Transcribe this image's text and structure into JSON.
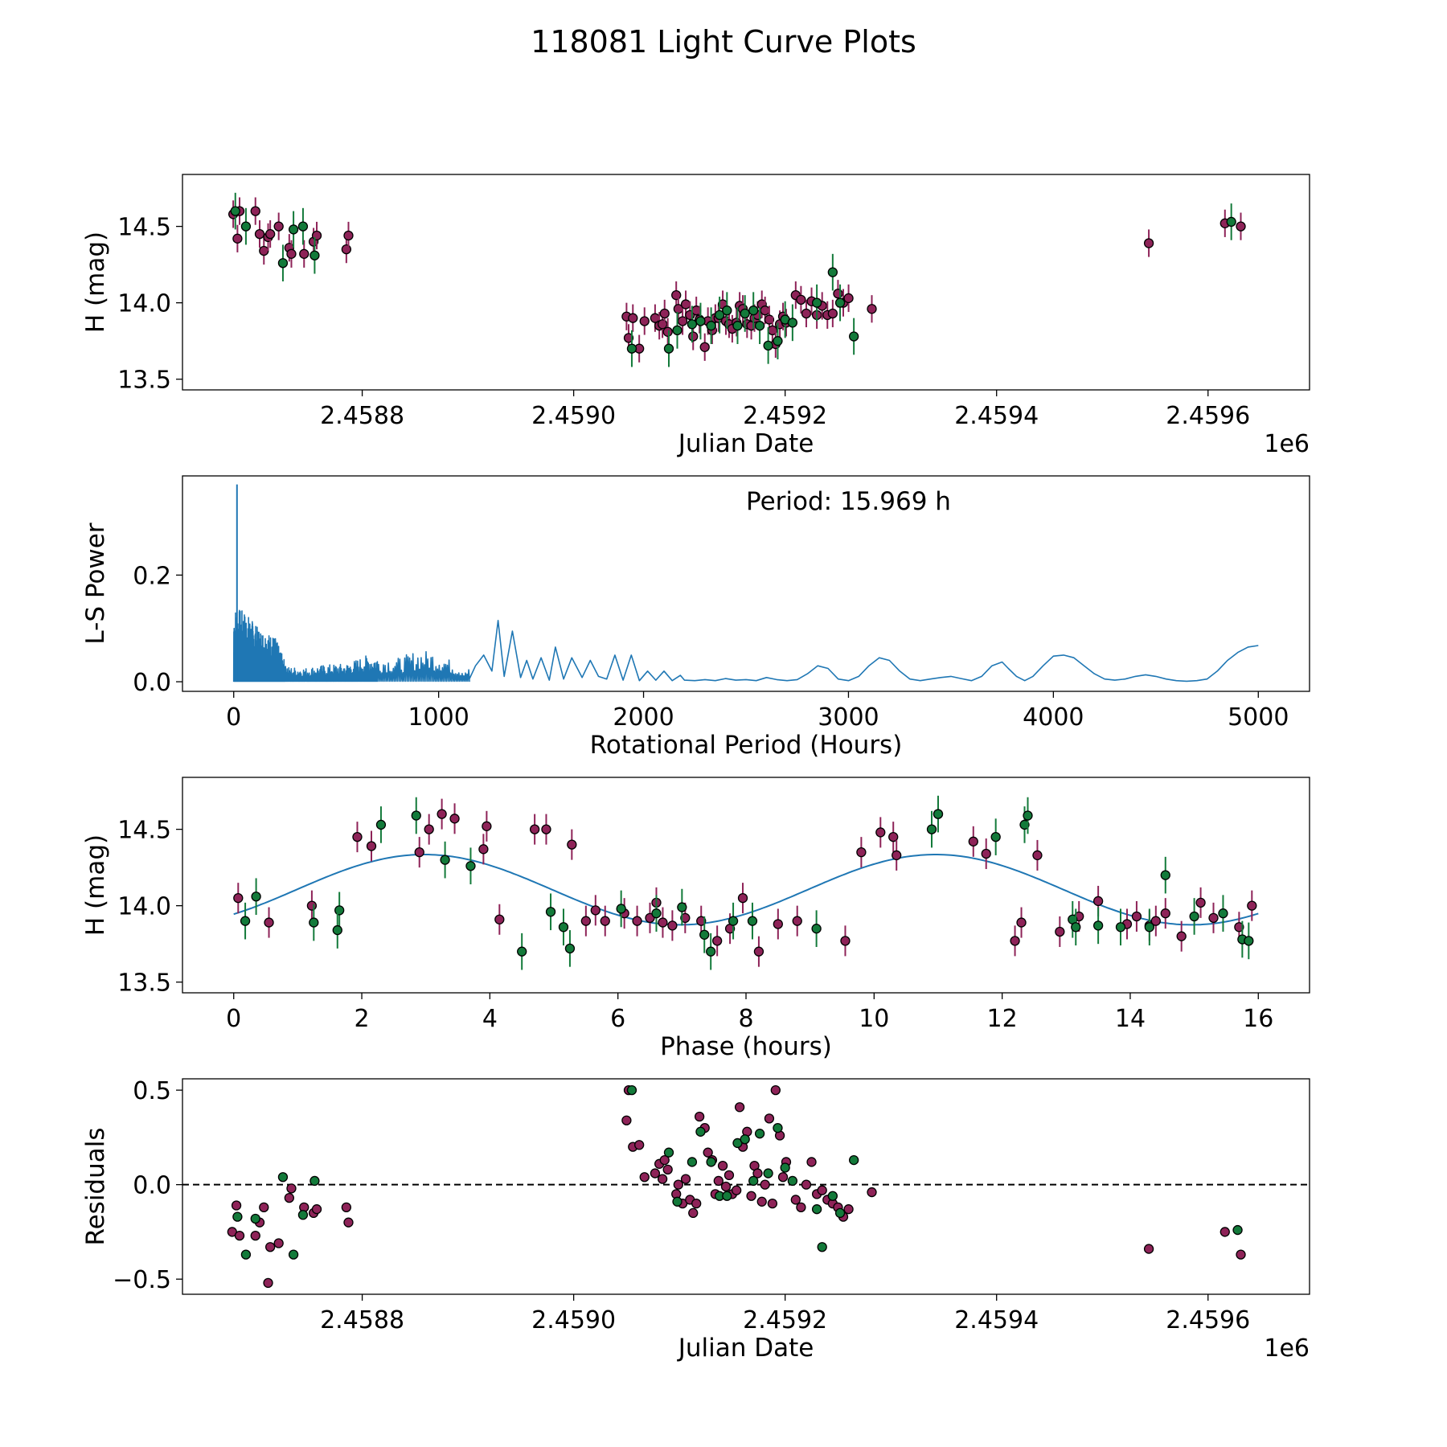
{
  "title": "118081 Light Curve Plots",
  "colors": {
    "purple": "#8e2358",
    "green": "#137a3a",
    "curve": "#1f77b4",
    "edge": "#000000"
  },
  "chart_data": [
    {
      "id": "lc",
      "type": "scatter",
      "xlabel": "Julian Date",
      "ylabel": "H (mag)",
      "offset_text": "1e6",
      "xlim": [
        2458630,
        2459696
      ],
      "ylim": [
        13.43,
        14.84
      ],
      "xticks": [
        2458800,
        2459000,
        2459200,
        2459400,
        2459600
      ],
      "xtick_labels": [
        "2.4588",
        "2.4590",
        "2.4592",
        "2.4594",
        "2.4596"
      ],
      "yticks": [
        13.5,
        14.0,
        14.5
      ],
      "ytick_labels": [
        "13.5",
        "14.0",
        "14.5"
      ],
      "series": [
        {
          "color": "purple",
          "err": 0.09,
          "x": [
            2458678,
            2458682,
            2458684,
            2458699,
            2458703,
            2458707,
            2458711,
            2458713,
            2458721,
            2458731,
            2458733,
            2458745,
            2458754,
            2458757,
            2458785,
            2458787,
            2459050,
            2459052,
            2459056,
            2459062,
            2459067,
            2459077,
            2459081,
            2459084,
            2459086,
            2459089,
            2459097,
            2459099,
            2459103,
            2459106,
            2459110,
            2459113,
            2459116,
            2459119,
            2459124,
            2459127,
            2459131,
            2459134,
            2459137,
            2459141,
            2459144,
            2459147,
            2459150,
            2459154,
            2459157,
            2459160,
            2459164,
            2459168,
            2459171,
            2459174,
            2459178,
            2459181,
            2459185,
            2459188,
            2459191,
            2459195,
            2459198,
            2459201,
            2459210,
            2459215,
            2459220,
            2459225,
            2459230,
            2459235,
            2459240,
            2459245,
            2459250,
            2459255,
            2459260,
            2459282,
            2459544,
            2459616,
            2459631
          ],
          "y": [
            14.58,
            14.42,
            14.6,
            14.6,
            14.45,
            14.34,
            14.43,
            14.45,
            14.5,
            14.36,
            14.32,
            14.32,
            14.4,
            14.44,
            14.35,
            14.44,
            13.91,
            13.77,
            13.9,
            13.7,
            13.88,
            13.9,
            13.85,
            13.86,
            13.93,
            13.81,
            14.05,
            13.96,
            13.88,
            13.99,
            13.92,
            13.78,
            13.95,
            13.89,
            13.71,
            13.88,
            13.82,
            13.9,
            13.9,
            13.99,
            13.88,
            13.86,
            13.83,
            13.87,
            13.98,
            13.96,
            13.86,
            13.85,
            13.9,
            13.92,
            13.99,
            13.95,
            13.89,
            13.82,
            13.73,
            13.86,
            13.91,
            13.87,
            14.05,
            14.02,
            13.93,
            14.01,
            13.92,
            13.98,
            13.92,
            13.93,
            14.06,
            14.0,
            14.03,
            13.96,
            14.39,
            14.52,
            14.5
          ]
        },
        {
          "color": "green",
          "err": 0.12,
          "x": [
            2458680,
            2458690,
            2458725,
            2458735,
            2458744,
            2458755,
            2459055,
            2459090,
            2459098,
            2459112,
            2459120,
            2459130,
            2459138,
            2459145,
            2459155,
            2459162,
            2459170,
            2459176,
            2459184,
            2459193,
            2459200,
            2459207,
            2459230,
            2459245,
            2459252,
            2459265,
            2459622
          ],
          "y": [
            14.6,
            14.5,
            14.26,
            14.48,
            14.5,
            14.31,
            13.7,
            13.7,
            13.82,
            13.86,
            13.88,
            13.85,
            13.92,
            13.95,
            13.85,
            13.93,
            13.95,
            13.85,
            13.72,
            13.75,
            13.89,
            13.87,
            14.0,
            14.2,
            14.0,
            13.78,
            14.53
          ]
        }
      ]
    },
    {
      "id": "ls",
      "type": "line",
      "xlabel": "Rotational Period (Hours)",
      "ylabel": "L-S Power",
      "annotation": "Period: 15.969 h",
      "xlim": [
        -250,
        5250
      ],
      "ylim": [
        -0.018,
        0.386
      ],
      "xticks": [
        0,
        1000,
        2000,
        3000,
        4000,
        5000
      ],
      "xtick_labels": [
        "0",
        "1000",
        "2000",
        "3000",
        "4000",
        "5000"
      ],
      "yticks": [
        0.0,
        0.2
      ],
      "ytick_labels": [
        "0.0",
        "0.2"
      ],
      "peak": {
        "x": 15.969,
        "y": 0.37
      },
      "envelope": {
        "x": [
          10,
          60,
          120,
          200,
          260,
          350,
          450,
          550,
          650,
          800,
          900,
          1000,
          1100,
          1150
        ],
        "y": [
          0.14,
          0.13,
          0.1,
          0.085,
          0.028,
          0.026,
          0.032,
          0.034,
          0.05,
          0.045,
          0.06,
          0.055,
          0.028,
          0.025
        ]
      },
      "smooth": {
        "x": [
          1150,
          1180,
          1220,
          1260,
          1290,
          1320,
          1360,
          1400,
          1430,
          1460,
          1500,
          1540,
          1570,
          1610,
          1650,
          1700,
          1740,
          1780,
          1820,
          1860,
          1900,
          1940,
          1980,
          2020,
          2060,
          2100,
          2140,
          2180,
          2200,
          2250,
          2300,
          2350,
          2400,
          2450,
          2500,
          2550,
          2600,
          2650,
          2700,
          2750,
          2800,
          2850,
          2900,
          2950,
          3000,
          3050,
          3100,
          3150,
          3200,
          3250,
          3300,
          3350,
          3400,
          3450,
          3500,
          3550,
          3600,
          3650,
          3700,
          3750,
          3780,
          3820,
          3860,
          3900,
          3950,
          4000,
          4050,
          4100,
          4150,
          4200,
          4250,
          4300,
          4350,
          4400,
          4450,
          4500,
          4550,
          4600,
          4650,
          4700,
          4750,
          4800,
          4850,
          4900,
          4950,
          5000
        ],
        "y": [
          0.005,
          0.03,
          0.05,
          0.02,
          0.115,
          0.01,
          0.095,
          0.008,
          0.04,
          0.005,
          0.045,
          0.003,
          0.065,
          0.005,
          0.045,
          0.008,
          0.04,
          0.01,
          0.005,
          0.05,
          0.003,
          0.05,
          0.002,
          0.02,
          0.003,
          0.02,
          0.002,
          0.012,
          0.003,
          0.002,
          0.004,
          0.002,
          0.006,
          0.003,
          0.004,
          0.002,
          0.008,
          0.004,
          0.002,
          0.004,
          0.015,
          0.03,
          0.025,
          0.005,
          0.002,
          0.01,
          0.03,
          0.045,
          0.04,
          0.02,
          0.005,
          0.002,
          0.005,
          0.008,
          0.01,
          0.006,
          0.002,
          0.01,
          0.03,
          0.037,
          0.025,
          0.01,
          0.002,
          0.01,
          0.03,
          0.048,
          0.05,
          0.045,
          0.03,
          0.015,
          0.005,
          0.003,
          0.005,
          0.01,
          0.013,
          0.01,
          0.005,
          0.002,
          0.001,
          0.002,
          0.005,
          0.02,
          0.04,
          0.055,
          0.065,
          0.068
        ]
      }
    },
    {
      "id": "phase",
      "type": "scatter",
      "xlabel": "Phase (hours)",
      "ylabel": "H (mag)",
      "xlim": [
        -0.8,
        16.8
      ],
      "ylim": [
        13.43,
        14.84
      ],
      "xticks": [
        0,
        2,
        4,
        6,
        8,
        10,
        12,
        14,
        16
      ],
      "xtick_labels": [
        "0",
        "2",
        "4",
        "6",
        "8",
        "10",
        "12",
        "14",
        "16"
      ],
      "yticks": [
        13.5,
        14.0,
        14.5
      ],
      "ytick_labels": [
        "13.5",
        "14.0",
        "14.5"
      ],
      "fit": {
        "mean": 14.105,
        "amplitude": 0.23,
        "period": 7.9845,
        "phase0": 0.98
      },
      "series": [
        {
          "color": "purple",
          "err": 0.1,
          "x": [
            0.07,
            0.55,
            1.22,
            1.93,
            2.15,
            2.9,
            3.05,
            3.25,
            3.45,
            3.9,
            3.95,
            4.15,
            4.7,
            4.88,
            5.28,
            5.5,
            5.65,
            5.8,
            6.1,
            6.3,
            6.5,
            6.6,
            6.7,
            6.85,
            7.05,
            7.3,
            7.55,
            7.75,
            7.95,
            8.2,
            8.5,
            8.8,
            9.55,
            9.8,
            10.3,
            10.35,
            11.0,
            11.55,
            11.75,
            12.2,
            12.3,
            12.55,
            12.9,
            13.2,
            13.5,
            13.95,
            14.1,
            14.3,
            14.4,
            14.55,
            14.8,
            15.1,
            15.3,
            15.7,
            15.9,
            10.1
          ],
          "y": [
            14.05,
            13.89,
            14.0,
            14.45,
            14.39,
            14.35,
            14.5,
            14.6,
            14.57,
            14.37,
            14.52,
            13.91,
            14.5,
            14.5,
            14.4,
            13.9,
            13.97,
            13.9,
            13.95,
            13.9,
            13.92,
            14.02,
            13.89,
            13.87,
            13.92,
            13.9,
            13.77,
            13.85,
            14.05,
            13.7,
            13.88,
            13.9,
            13.77,
            14.35,
            14.45,
            14.33,
            14.6,
            14.42,
            14.34,
            13.77,
            13.89,
            14.33,
            13.83,
            13.93,
            14.03,
            13.88,
            13.93,
            13.87,
            13.9,
            13.95,
            13.8,
            14.02,
            13.92,
            13.86,
            14.0,
            14.48
          ]
        },
        {
          "color": "green",
          "err": 0.12,
          "x": [
            0.18,
            0.35,
            1.25,
            1.65,
            2.3,
            2.85,
            3.3,
            3.7,
            4.5,
            4.95,
            5.15,
            5.25,
            6.05,
            6.6,
            7.0,
            7.35,
            7.8,
            8.1,
            9.1,
            10.9,
            11.0,
            11.9,
            12.35,
            12.4,
            13.1,
            13.15,
            13.5,
            13.85,
            14.3,
            14.55,
            15.0,
            15.45,
            15.75,
            15.85,
            1.62,
            7.45
          ],
          "y": [
            13.9,
            14.06,
            13.89,
            13.97,
            14.53,
            14.59,
            14.3,
            14.26,
            13.7,
            13.96,
            13.86,
            13.72,
            13.98,
            13.95,
            13.99,
            13.81,
            13.9,
            13.9,
            13.85,
            14.5,
            14.6,
            14.45,
            14.53,
            14.59,
            13.91,
            13.86,
            13.87,
            13.86,
            13.86,
            14.2,
            13.93,
            13.95,
            13.78,
            13.77,
            13.84,
            13.7
          ]
        }
      ]
    },
    {
      "id": "resid",
      "type": "scatter",
      "xlabel": "Julian Date",
      "ylabel": "Residuals",
      "offset_text": "1e6",
      "xlim": [
        2458630,
        2459696
      ],
      "ylim": [
        -0.58,
        0.56
      ],
      "xticks": [
        2458800,
        2459000,
        2459200,
        2459400,
        2459600
      ],
      "xtick_labels": [
        "2.4588",
        "2.4590",
        "2.4592",
        "2.4594",
        "2.4596"
      ],
      "yticks": [
        -0.5,
        0.0,
        0.5
      ],
      "ytick_labels": [
        "−0.5",
        "0.0",
        "0.5"
      ],
      "reference_line": 0.0,
      "series": [
        {
          "color": "purple",
          "x": [
            2458677,
            2458681,
            2458684,
            2458699,
            2458703,
            2458707,
            2458711,
            2458713,
            2458721,
            2458731,
            2458733,
            2458745,
            2458754,
            2458757,
            2458785,
            2458787,
            2459050,
            2459052,
            2459056,
            2459062,
            2459067,
            2459077,
            2459081,
            2459084,
            2459086,
            2459089,
            2459097,
            2459099,
            2459103,
            2459106,
            2459110,
            2459113,
            2459116,
            2459119,
            2459124,
            2459127,
            2459131,
            2459134,
            2459137,
            2459141,
            2459144,
            2459147,
            2459150,
            2459154,
            2459157,
            2459160,
            2459164,
            2459168,
            2459171,
            2459174,
            2459178,
            2459181,
            2459185,
            2459188,
            2459191,
            2459195,
            2459198,
            2459201,
            2459210,
            2459215,
            2459220,
            2459225,
            2459230,
            2459235,
            2459240,
            2459245,
            2459250,
            2459255,
            2459260,
            2459282,
            2459544,
            2459616,
            2459631
          ],
          "y": [
            -0.25,
            -0.11,
            -0.27,
            -0.27,
            -0.2,
            -0.12,
            -0.52,
            -0.33,
            -0.31,
            -0.07,
            -0.02,
            -0.12,
            -0.15,
            -0.13,
            -0.12,
            -0.2,
            0.34,
            0.5,
            0.2,
            0.21,
            0.04,
            0.06,
            0.11,
            0.03,
            0.13,
            0.08,
            -0.05,
            0.0,
            -0.1,
            0.03,
            -0.08,
            -0.15,
            -0.1,
            0.36,
            0.3,
            0.17,
            0.13,
            -0.05,
            0.02,
            0.1,
            -0.01,
            0.05,
            -0.05,
            -0.03,
            0.41,
            0.2,
            0.28,
            -0.06,
            0.1,
            0.06,
            -0.09,
            0.0,
            0.35,
            -0.1,
            0.5,
            0.26,
            0.04,
            0.12,
            -0.08,
            -0.12,
            0.0,
            0.12,
            -0.05,
            -0.03,
            -0.08,
            -0.1,
            -0.12,
            -0.17,
            -0.13,
            -0.04,
            -0.34,
            -0.25,
            -0.37
          ]
        },
        {
          "color": "green",
          "x": [
            2458682,
            2458690,
            2458699,
            2458725,
            2458735,
            2458744,
            2458755,
            2459055,
            2459090,
            2459098,
            2459112,
            2459120,
            2459130,
            2459138,
            2459145,
            2459155,
            2459162,
            2459170,
            2459176,
            2459184,
            2459193,
            2459200,
            2459207,
            2459230,
            2459235,
            2459245,
            2459252,
            2459265,
            2459628
          ],
          "y": [
            -0.17,
            -0.37,
            -0.18,
            0.04,
            -0.37,
            -0.16,
            0.02,
            0.5,
            0.17,
            -0.09,
            0.12,
            0.28,
            0.12,
            -0.06,
            -0.06,
            0.22,
            0.24,
            0.02,
            0.27,
            0.06,
            0.3,
            0.09,
            0.02,
            -0.13,
            -0.33,
            -0.06,
            -0.15,
            0.13,
            -0.24
          ]
        }
      ]
    }
  ]
}
